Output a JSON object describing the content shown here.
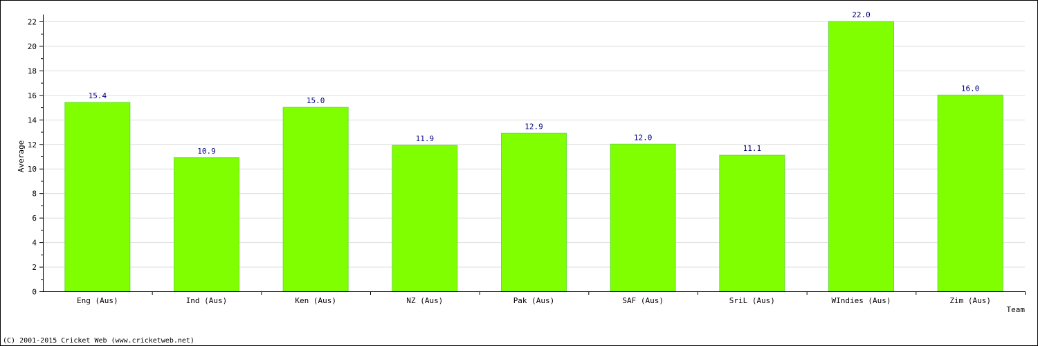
{
  "chart_data": {
    "type": "bar",
    "title": "",
    "xlabel": "Team",
    "ylabel": "Average",
    "categories": [
      "Eng (Aus)",
      "Ind (Aus)",
      "Ken (Aus)",
      "NZ (Aus)",
      "Pak (Aus)",
      "SAF (Aus)",
      "SriL (Aus)",
      "WIndies (Aus)",
      "Zim (Aus)"
    ],
    "values": [
      15.4,
      10.9,
      15.0,
      11.9,
      12.9,
      12.0,
      11.1,
      22.0,
      16.0
    ],
    "value_labels": [
      "15.4",
      "10.9",
      "15.0",
      "11.9",
      "12.9",
      "12.0",
      "11.1",
      "22.0",
      "16.0"
    ],
    "ylim": [
      0,
      22
    ],
    "yticks": [
      0,
      2,
      4,
      6,
      8,
      10,
      12,
      14,
      16,
      18,
      20,
      22
    ],
    "grid": true,
    "bar_color": "#80ff00",
    "value_label_color": "#000080"
  },
  "footer": {
    "copyright": "(C) 2001-2015 Cricket Web (www.cricketweb.net)"
  }
}
